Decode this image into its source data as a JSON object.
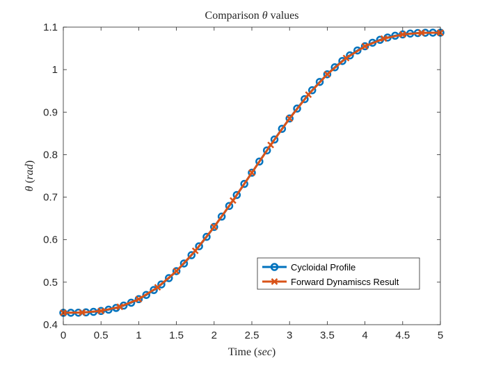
{
  "chart_data": {
    "type": "line",
    "title": {
      "prefix": "Comparison ",
      "symbol": "θ",
      "suffix": " values"
    },
    "xlabel": {
      "text": "Time (",
      "unit": "sec",
      "close": ")"
    },
    "ylabel": {
      "symbol": "θ",
      "open": " (",
      "unit": "rad",
      "close": ")"
    },
    "xlim": [
      0,
      5
    ],
    "ylim": [
      0.4,
      1.1
    ],
    "x_ticks": [
      0,
      0.5,
      1,
      1.5,
      2,
      2.5,
      3,
      3.5,
      4,
      4.5,
      5
    ],
    "x_tick_labels": [
      "0",
      "0.5",
      "1",
      "1.5",
      "2",
      "2.5",
      "3",
      "3.5",
      "4",
      "4.5",
      "5"
    ],
    "y_ticks": [
      0.4,
      0.5,
      0.6,
      0.7,
      0.8,
      0.9,
      1.0,
      1.1
    ],
    "y_tick_labels": [
      "0.4",
      "0.5",
      "0.6",
      "0.7",
      "0.8",
      "0.9",
      "1",
      "1.1"
    ],
    "grid": false,
    "box": true,
    "legend_position": "lower-right",
    "curve": {
      "type": "cycloidal",
      "t_start": 0,
      "t_end": 5,
      "theta_start": 0.428,
      "theta_end": 1.087
    },
    "series": [
      {
        "name": "Cycloidal Profile",
        "color": "#0072BD",
        "marker": "circle",
        "line": "solid",
        "n_points": 51
      },
      {
        "name": "Forward Dynamiscs Result",
        "color": "#D95319",
        "marker": "x",
        "line": "solid",
        "n_points": 21
      }
    ]
  }
}
